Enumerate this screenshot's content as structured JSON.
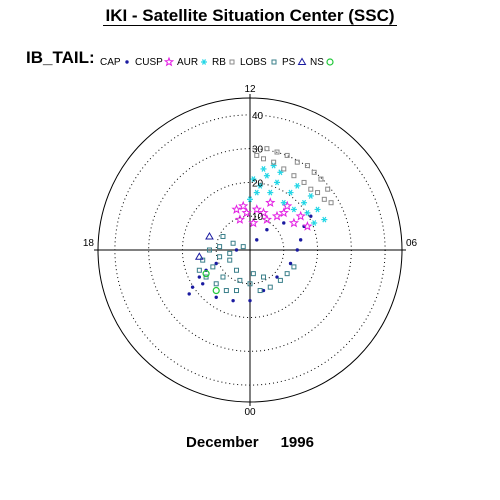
{
  "header": {
    "title": "IKI - Satellite Situation Center (SSC)"
  },
  "legend": {
    "name": "IB_TAIL:",
    "items": [
      {
        "label": "CAP",
        "marker": "dot",
        "color": "#1a1aa0"
      },
      {
        "label": "CUSP",
        "marker": "star",
        "color": "#e31fe3"
      },
      {
        "label": "AUR",
        "marker": "asterisk",
        "color": "#22d6e6"
      },
      {
        "label": "RB",
        "marker": "square",
        "color": "#8a8a8a"
      },
      {
        "label": "LOBS",
        "marker": "square",
        "color": "#3a7f8a"
      },
      {
        "label": "PS",
        "marker": "triangle",
        "color": "#1a1aa0"
      },
      {
        "label": "NS",
        "marker": "circle",
        "color": "#22c83a"
      }
    ]
  },
  "footer": {
    "month": "December",
    "year": "1996"
  },
  "chart_data": {
    "type": "scatter",
    "coordinate_system": "polar",
    "angle_labels": {
      "top": "12",
      "left": "18",
      "right": "06",
      "bottom": "00"
    },
    "radial_ticks": [
      10,
      20,
      30,
      40
    ],
    "radial_tick_labels": [
      "10",
      "20",
      "30",
      "40"
    ],
    "rmax": 45,
    "series": [
      {
        "name": "CAP",
        "marker": "dot",
        "color": "#1a1aa0",
        "points": [
          [
            -14,
            -10
          ],
          [
            -10,
            -14
          ],
          [
            -5,
            -15
          ],
          [
            0,
            -15
          ],
          [
            4,
            -12
          ],
          [
            8,
            -8
          ],
          [
            12,
            -4
          ],
          [
            14,
            0
          ],
          [
            15,
            3
          ],
          [
            16,
            7
          ],
          [
            18,
            10
          ],
          [
            10,
            8
          ],
          [
            5,
            6
          ],
          [
            2,
            3
          ],
          [
            -4,
            0
          ],
          [
            -10,
            -4
          ],
          [
            -13,
            -6
          ],
          [
            -15,
            -8
          ],
          [
            -17,
            -11
          ],
          [
            -18,
            -13
          ]
        ]
      },
      {
        "name": "CUSP",
        "marker": "star",
        "color": "#e31fe3",
        "points": [
          [
            -3,
            9
          ],
          [
            -1,
            11
          ],
          [
            2,
            12
          ],
          [
            4,
            11
          ],
          [
            5,
            9
          ],
          [
            8,
            10
          ],
          [
            10,
            11
          ],
          [
            13,
            8
          ],
          [
            15,
            10
          ],
          [
            17,
            7
          ],
          [
            -2,
            13
          ],
          [
            6,
            14
          ],
          [
            1,
            8
          ],
          [
            -4,
            12
          ],
          [
            11,
            13
          ]
        ]
      },
      {
        "name": "AUR",
        "marker": "asterisk",
        "color": "#22d6e6",
        "points": [
          [
            0,
            15
          ],
          [
            2,
            17
          ],
          [
            3,
            19
          ],
          [
            5,
            22
          ],
          [
            6,
            17
          ],
          [
            8,
            20
          ],
          [
            10,
            14
          ],
          [
            12,
            17
          ],
          [
            14,
            19
          ],
          [
            16,
            14
          ],
          [
            18,
            16
          ],
          [
            20,
            12
          ],
          [
            22,
            9
          ],
          [
            17,
            11
          ],
          [
            9,
            23
          ],
          [
            4,
            24
          ],
          [
            7,
            25
          ],
          [
            13,
            12
          ],
          [
            19,
            8
          ],
          [
            1,
            21
          ]
        ]
      },
      {
        "name": "RB",
        "marker": "square",
        "color": "#8a8a8a",
        "points": [
          [
            2,
            28
          ],
          [
            5,
            30
          ],
          [
            8,
            29
          ],
          [
            11,
            28
          ],
          [
            14,
            26
          ],
          [
            17,
            25
          ],
          [
            19,
            23
          ],
          [
            21,
            21
          ],
          [
            23,
            18
          ],
          [
            24,
            14
          ],
          [
            10,
            24
          ],
          [
            7,
            26
          ],
          [
            4,
            27
          ],
          [
            13,
            22
          ],
          [
            16,
            20
          ],
          [
            18,
            18
          ],
          [
            20,
            17
          ],
          [
            22,
            15
          ]
        ]
      },
      {
        "name": "LOBS",
        "marker": "square",
        "color": "#3a7f8a",
        "points": [
          [
            -12,
            0
          ],
          [
            -14,
            -3
          ],
          [
            -15,
            -6
          ],
          [
            -13,
            -8
          ],
          [
            -11,
            -5
          ],
          [
            -9,
            -2
          ],
          [
            -6,
            -3
          ],
          [
            -4,
            -6
          ],
          [
            -3,
            -9
          ],
          [
            0,
            -10
          ],
          [
            3,
            -12
          ],
          [
            6,
            -11
          ],
          [
            9,
            -9
          ],
          [
            11,
            -7
          ],
          [
            13,
            -5
          ],
          [
            -8,
            -8
          ],
          [
            -10,
            -10
          ],
          [
            -7,
            -12
          ],
          [
            -4,
            -12
          ],
          [
            -2,
            1
          ],
          [
            -5,
            2
          ],
          [
            -8,
            4
          ],
          [
            -9,
            1
          ],
          [
            -6,
            -1
          ],
          [
            1,
            -7
          ],
          [
            4,
            -8
          ]
        ]
      },
      {
        "name": "PS",
        "marker": "triangle",
        "color": "#1a1aa0",
        "points": [
          [
            -12,
            4
          ],
          [
            -15,
            -2
          ]
        ]
      },
      {
        "name": "NS",
        "marker": "circle",
        "color": "#22c83a",
        "points": [
          [
            -13,
            -7
          ],
          [
            -10,
            -12
          ]
        ]
      }
    ]
  }
}
